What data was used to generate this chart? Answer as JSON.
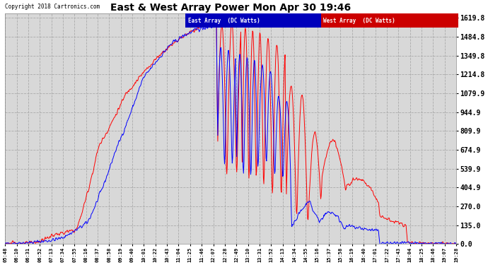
{
  "title": "East & West Array Power Mon Apr 30 19:46",
  "copyright": "Copyright 2018 Cartronics.com",
  "east_label": "East Array  (DC Watts)",
  "west_label": "West Array  (DC Watts)",
  "east_color": "#0000ff",
  "west_color": "#ff0000",
  "east_legend_bg": "#0000bb",
  "west_legend_bg": "#cc0000",
  "bg_color": "#ffffff",
  "plot_bg": "#d8d8d8",
  "grid_color": "#aaaaaa",
  "yticks": [
    0.0,
    135.0,
    270.0,
    404.9,
    539.9,
    674.9,
    809.9,
    944.9,
    1079.9,
    1214.8,
    1349.8,
    1484.8,
    1619.8
  ],
  "ymax": 1650.0,
  "xtick_labels": [
    "05:48",
    "06:10",
    "06:31",
    "06:52",
    "07:13",
    "07:34",
    "07:55",
    "08:16",
    "08:37",
    "08:58",
    "09:19",
    "09:40",
    "10:01",
    "10:22",
    "10:43",
    "11:04",
    "11:25",
    "11:46",
    "12:07",
    "12:28",
    "12:49",
    "13:10",
    "13:31",
    "13:52",
    "14:13",
    "14:34",
    "14:55",
    "15:16",
    "15:37",
    "15:58",
    "16:19",
    "16:40",
    "17:01",
    "17:22",
    "17:43",
    "18:04",
    "18:25",
    "18:46",
    "19:07",
    "19:28"
  ]
}
